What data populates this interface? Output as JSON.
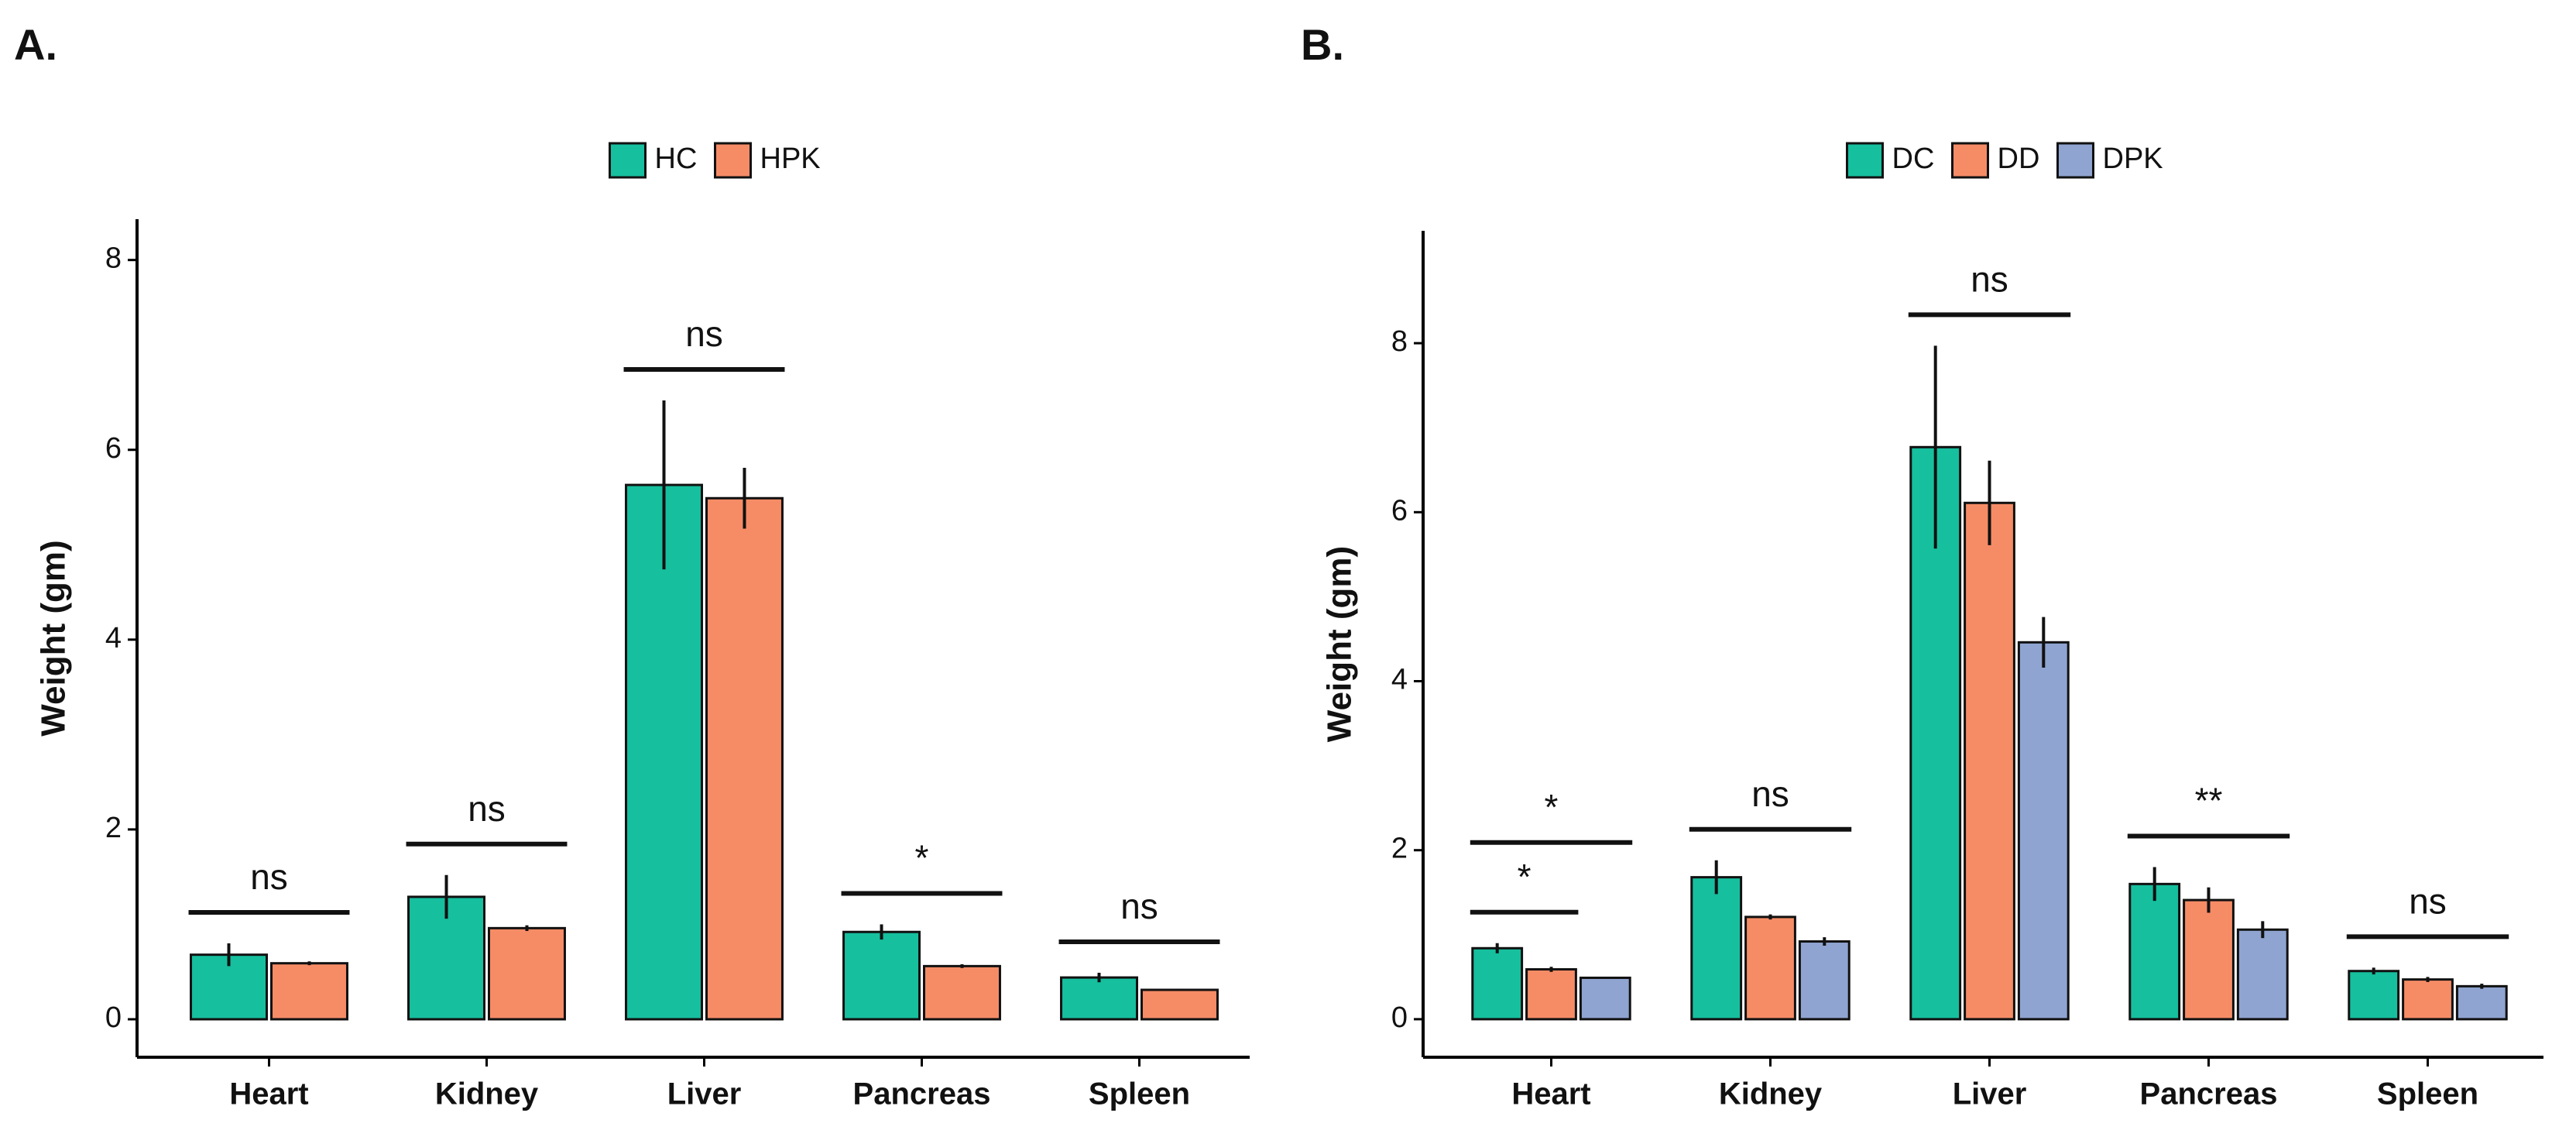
{
  "chart_data": [
    {
      "type": "bar",
      "panel": "A.",
      "y_label": "Weight (gm)",
      "categories": [
        "Heart",
        "Kidney",
        "Liver",
        "Pancreas",
        "Spleen"
      ],
      "series": [
        {
          "name": "HC",
          "color": "#16bf9e",
          "values": [
            0.68,
            1.29,
            5.63,
            0.92,
            0.44
          ],
          "errors": [
            0.12,
            0.23,
            0.89,
            0.08,
            0.05
          ]
        },
        {
          "name": "HPK",
          "color": "#f68c66",
          "values": [
            0.59,
            0.96,
            5.49,
            0.56,
            0.31
          ],
          "errors": [
            0.02,
            0.03,
            0.32,
            0.02,
            0.01
          ]
        }
      ],
      "ylim": [
        -0.4,
        8.43
      ],
      "yticks": [
        0,
        2,
        4,
        6,
        8
      ],
      "legend": "top",
      "annotations": [
        {
          "label": "ns",
          "category": "Heart",
          "groups": [
            "HC",
            "HPK"
          ]
        },
        {
          "label": "ns",
          "category": "Kidney",
          "groups": [
            "HC",
            "HPK"
          ]
        },
        {
          "label": "ns",
          "category": "Liver",
          "groups": [
            "HC",
            "HPK"
          ]
        },
        {
          "label": "*",
          "category": "Pancreas",
          "groups": [
            "HC",
            "HPK"
          ]
        },
        {
          "label": "ns",
          "category": "Spleen",
          "groups": [
            "HC",
            "HPK"
          ]
        }
      ]
    },
    {
      "type": "bar",
      "panel": "B.",
      "y_label": "Weight (gm)",
      "categories": [
        "Heart",
        "Kidney",
        "Liver",
        "Pancreas",
        "Spleen"
      ],
      "series": [
        {
          "name": "DC",
          "color": "#16bf9e",
          "values": [
            0.84,
            1.68,
            6.77,
            1.6,
            0.57
          ],
          "errors": [
            0.06,
            0.2,
            1.2,
            0.2,
            0.04
          ]
        },
        {
          "name": "DD",
          "color": "#f68c66",
          "values": [
            0.59,
            1.21,
            6.11,
            1.41,
            0.47
          ],
          "errors": [
            0.03,
            0.03,
            0.5,
            0.15,
            0.03
          ]
        },
        {
          "name": "DPK",
          "color": "#8fa4d0",
          "values": [
            0.49,
            0.92,
            4.46,
            1.06,
            0.39
          ],
          "errors": [
            0.01,
            0.05,
            0.3,
            0.1,
            0.03
          ]
        }
      ],
      "ylim": [
        -0.45,
        9.33
      ],
      "yticks": [
        0,
        2,
        4,
        6,
        8
      ],
      "legend": "top",
      "annotations": [
        {
          "label": "*",
          "category": "Heart",
          "groups": [
            "DC",
            "DD"
          ]
        },
        {
          "label": "*",
          "category": "Heart",
          "groups": [
            "DC",
            "DPK"
          ]
        },
        {
          "label": "ns",
          "category": "Kidney",
          "groups": [
            "DC",
            "DPK"
          ]
        },
        {
          "label": "ns",
          "category": "Liver",
          "groups": [
            "DC",
            "DPK"
          ]
        },
        {
          "label": "**",
          "category": "Pancreas",
          "groups": [
            "DC",
            "DPK"
          ]
        },
        {
          "label": "ns",
          "category": "Spleen",
          "groups": [
            "DC",
            "DPK"
          ]
        }
      ]
    }
  ]
}
